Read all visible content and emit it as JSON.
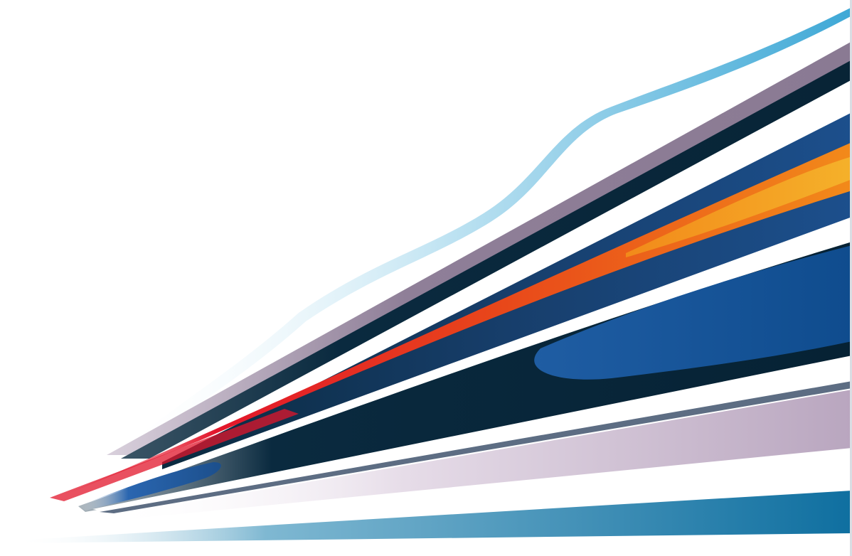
{
  "image": {
    "kind": "abstract-speed-lines-graphic",
    "background": "#ffffff"
  },
  "palette": {
    "sky_blue": "#3ea8d6",
    "mauve": "#8f7f98",
    "navy": "#0a2a3f",
    "dark_navy": "#062234",
    "royal_blue": "#1c4f8c",
    "deep_blue": "#0f4c8e",
    "orange": "#f28a1a",
    "amber": "#f5a623",
    "red": "#e2162b",
    "lilac": "#c8b8cc",
    "slate": "#5d6d83",
    "teal": "#0f6fa0"
  },
  "stripes": [
    {
      "name": "sky-blue-curve",
      "color": "sky_blue"
    },
    {
      "name": "mauve-stripe",
      "color": "mauve"
    },
    {
      "name": "navy-stripe-upper",
      "color": "navy"
    },
    {
      "name": "royal-blue-band",
      "color": "royal_blue"
    },
    {
      "name": "orange-stripe",
      "color": "orange"
    },
    {
      "name": "red-stripe",
      "color": "red"
    },
    {
      "name": "dark-navy-wedge",
      "color": "dark_navy"
    },
    {
      "name": "deep-blue-lozenge",
      "color": "deep_blue"
    },
    {
      "name": "lilac-band",
      "color": "lilac"
    },
    {
      "name": "slate-thin-line",
      "color": "slate"
    },
    {
      "name": "teal-base-stripe",
      "color": "teal"
    }
  ]
}
